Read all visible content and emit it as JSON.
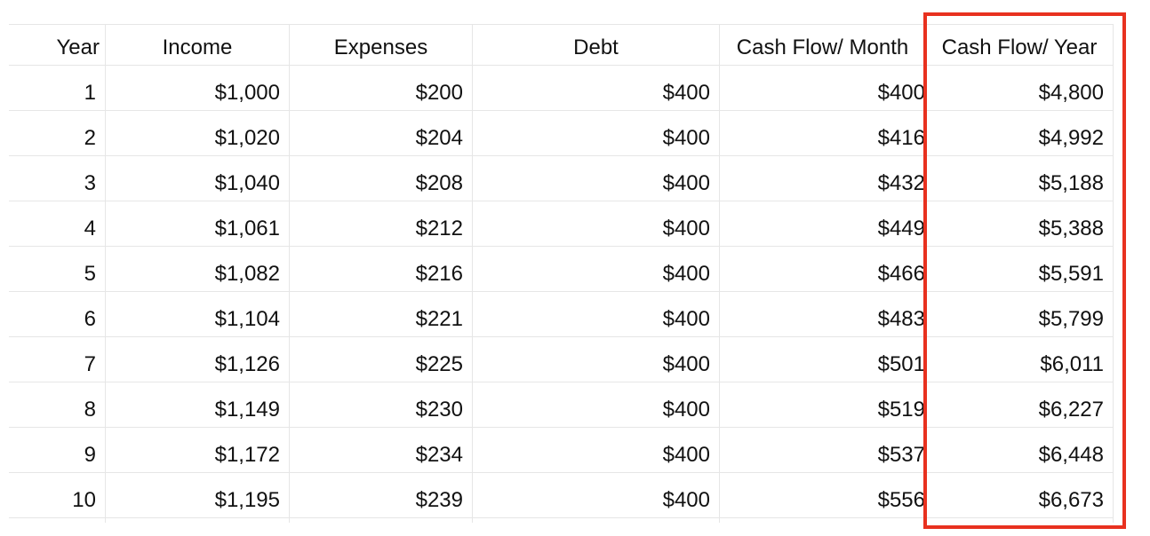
{
  "table": {
    "headers": [
      "Year",
      "Income",
      "Expenses",
      "Debt",
      "Cash Flow/ Month",
      "Cash Flow/ Year"
    ],
    "rows": [
      [
        "1",
        "$1,000",
        "$200",
        "$400",
        "$400",
        "$4,800"
      ],
      [
        "2",
        "$1,020",
        "$204",
        "$400",
        "$416",
        "$4,992"
      ],
      [
        "3",
        "$1,040",
        "$208",
        "$400",
        "$432",
        "$5,188"
      ],
      [
        "4",
        "$1,061",
        "$212",
        "$400",
        "$449",
        "$5,388"
      ],
      [
        "5",
        "$1,082",
        "$216",
        "$400",
        "$466",
        "$5,591"
      ],
      [
        "6",
        "$1,104",
        "$221",
        "$400",
        "$483",
        "$5,799"
      ],
      [
        "7",
        "$1,126",
        "$225",
        "$400",
        "$501",
        "$6,011"
      ],
      [
        "8",
        "$1,149",
        "$230",
        "$400",
        "$519",
        "$6,227"
      ],
      [
        "9",
        "$1,172",
        "$234",
        "$400",
        "$537",
        "$6,448"
      ],
      [
        "10",
        "$1,195",
        "$239",
        "$400",
        "$556",
        "$6,673"
      ]
    ]
  },
  "highlight": {
    "column": "Cash Flow/ Year",
    "color": "#e8311f"
  },
  "colors": {
    "gridline": "#e6e6e6",
    "text": "#111111"
  }
}
